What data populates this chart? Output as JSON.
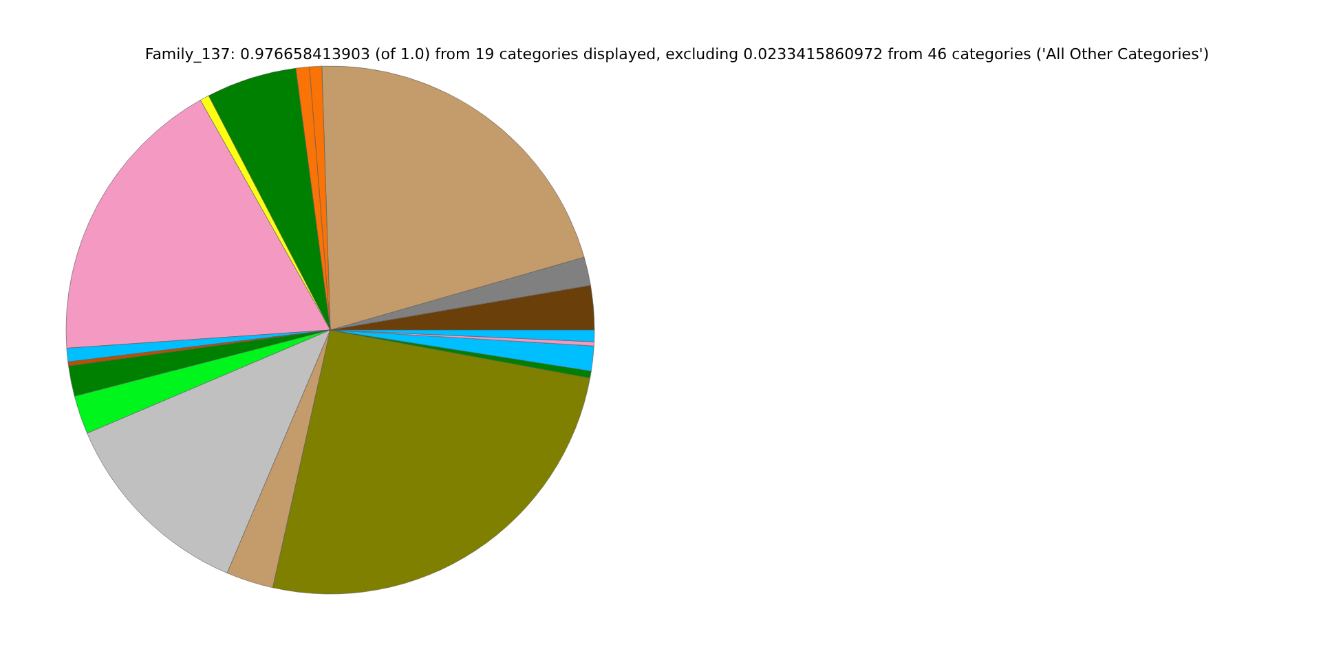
{
  "chart_data": {
    "type": "pie",
    "title": "Family_137: 0.976658413903 (of 1.0) from 19 categories displayed, excluding 0.0233415860972 from 46 categories ('All Other Categories')",
    "categories": [
      null,
      null,
      null,
      null,
      null,
      null,
      null,
      null,
      null,
      null,
      null,
      null,
      null,
      null,
      null,
      null,
      null,
      null,
      null
    ],
    "values": [
      2.71,
      1.74,
      21.06,
      0.75,
      0.83,
      5.53,
      0.56,
      17.92,
      0.83,
      0.25,
      1.86,
      2.36,
      12.22,
      2.89,
      25.58,
      0.42,
      1.53,
      0.25,
      0.71
    ],
    "colors": [
      "#6b3f0a",
      "#808080",
      "#c49c6b",
      "#f97306",
      "#f97306",
      "#008000",
      "#ffff14",
      "#f49ac2",
      "#00bfff",
      "#c04e01",
      "#008000",
      "#00f51c",
      "#c0c0c0",
      "#c49c6b",
      "#808000",
      "#008000",
      "#00bfff",
      "#f49ac2",
      "#00bfff"
    ]
  }
}
